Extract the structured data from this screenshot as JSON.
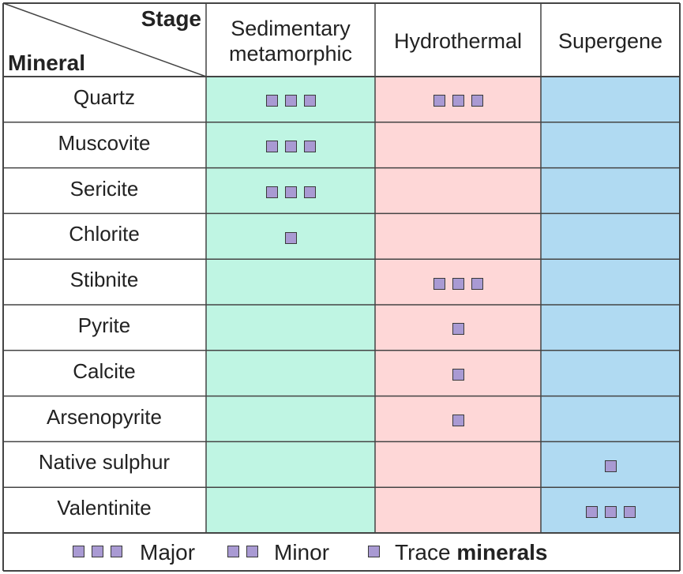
{
  "header": {
    "stage": "Stage",
    "mineral": "Mineral",
    "columns": [
      {
        "line1": "Sedimentary",
        "line2": "metamorphic",
        "color": "#bff5e3"
      },
      {
        "line1": "Hydrothermal",
        "line2": "",
        "color": "#fed7d7"
      },
      {
        "line1": "Supergene",
        "line2": "",
        "color": "#b0daf2"
      }
    ]
  },
  "rows": [
    {
      "mineral": "Quartz",
      "levels": [
        3,
        3,
        0
      ]
    },
    {
      "mineral": "Muscovite",
      "levels": [
        3,
        0,
        0
      ]
    },
    {
      "mineral": "Sericite",
      "levels": [
        3,
        0,
        0
      ]
    },
    {
      "mineral": "Chlorite",
      "levels": [
        1,
        0,
        0
      ]
    },
    {
      "mineral": "Stibnite",
      "levels": [
        0,
        3,
        0
      ]
    },
    {
      "mineral": "Pyrite",
      "levels": [
        0,
        1,
        0
      ]
    },
    {
      "mineral": "Calcite",
      "levels": [
        0,
        1,
        0
      ]
    },
    {
      "mineral": "Arsenopyrite",
      "levels": [
        0,
        1,
        0
      ]
    },
    {
      "mineral": "Native sulphur",
      "levels": [
        0,
        0,
        1
      ]
    },
    {
      "mineral": "Valentinite",
      "levels": [
        0,
        0,
        3
      ]
    }
  ],
  "legend": {
    "major": "Major",
    "minor": "Minor",
    "trace": "Trace",
    "trace_suffix": "minerals"
  },
  "colors": {
    "square_fill": "#a99ad3",
    "square_border": "#3a3a3a",
    "grid": "#444444"
  }
}
